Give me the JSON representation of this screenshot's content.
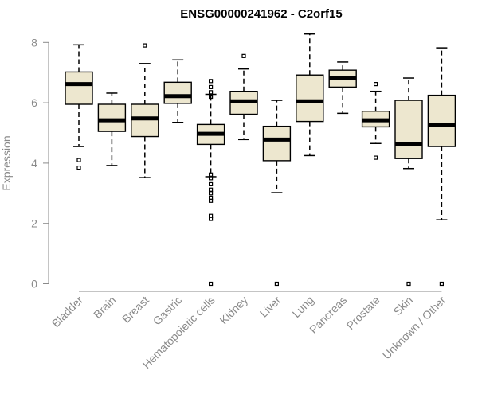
{
  "chart_data": {
    "type": "boxplot",
    "title": "ENSG00000241962 - C2orf15",
    "ylabel": "Expression",
    "xlabel": "",
    "ylim": [
      0,
      8.4
    ],
    "yticks": [
      0,
      2,
      4,
      6,
      8
    ],
    "box_fill": "#ede7cf",
    "categories": [
      "Bladder",
      "Brain",
      "Breast",
      "Gastric",
      "Hematopoietic cells",
      "Kidney",
      "Liver",
      "Lung",
      "Pancreas",
      "Prostate",
      "Skin",
      "Unknown / Other"
    ],
    "boxes": [
      {
        "whisker_low": 4.55,
        "q1": 5.95,
        "median": 6.62,
        "q3": 7.02,
        "whisker_high": 7.92,
        "outliers": [
          4.1,
          3.85
        ]
      },
      {
        "whisker_low": 3.92,
        "q1": 5.05,
        "median": 5.42,
        "q3": 5.95,
        "whisker_high": 6.32,
        "outliers": []
      },
      {
        "whisker_low": 3.52,
        "q1": 4.88,
        "median": 5.48,
        "q3": 5.95,
        "whisker_high": 7.3,
        "outliers": [
          7.9
        ]
      },
      {
        "whisker_low": 5.35,
        "q1": 5.98,
        "median": 6.22,
        "q3": 6.68,
        "whisker_high": 7.42,
        "outliers": []
      },
      {
        "whisker_low": 3.55,
        "q1": 4.62,
        "median": 4.97,
        "q3": 5.28,
        "whisker_high": 6.28,
        "outliers": [
          6.72,
          6.52,
          6.35,
          6.2,
          3.62,
          3.5,
          3.3,
          3.12,
          3.0,
          2.85,
          2.75,
          2.25,
          2.15,
          0.0
        ]
      },
      {
        "whisker_low": 4.78,
        "q1": 5.62,
        "median": 6.05,
        "q3": 6.38,
        "whisker_high": 7.12,
        "outliers": [
          7.55
        ]
      },
      {
        "whisker_low": 3.02,
        "q1": 4.08,
        "median": 4.78,
        "q3": 5.22,
        "whisker_high": 6.08,
        "outliers": [
          0.0
        ]
      },
      {
        "whisker_low": 4.25,
        "q1": 5.38,
        "median": 6.05,
        "q3": 6.92,
        "whisker_high": 8.28,
        "outliers": []
      },
      {
        "whisker_low": 5.65,
        "q1": 6.52,
        "median": 6.82,
        "q3": 7.08,
        "whisker_high": 7.35,
        "outliers": []
      },
      {
        "whisker_low": 4.65,
        "q1": 5.2,
        "median": 5.42,
        "q3": 5.72,
        "whisker_high": 6.38,
        "outliers": [
          6.62,
          4.18
        ]
      },
      {
        "whisker_low": 3.82,
        "q1": 4.15,
        "median": 4.62,
        "q3": 6.08,
        "whisker_high": 6.82,
        "outliers": [
          0.0
        ]
      },
      {
        "whisker_low": 2.12,
        "q1": 4.55,
        "median": 5.25,
        "q3": 6.25,
        "whisker_high": 7.82,
        "outliers": [
          0.0
        ]
      }
    ]
  }
}
